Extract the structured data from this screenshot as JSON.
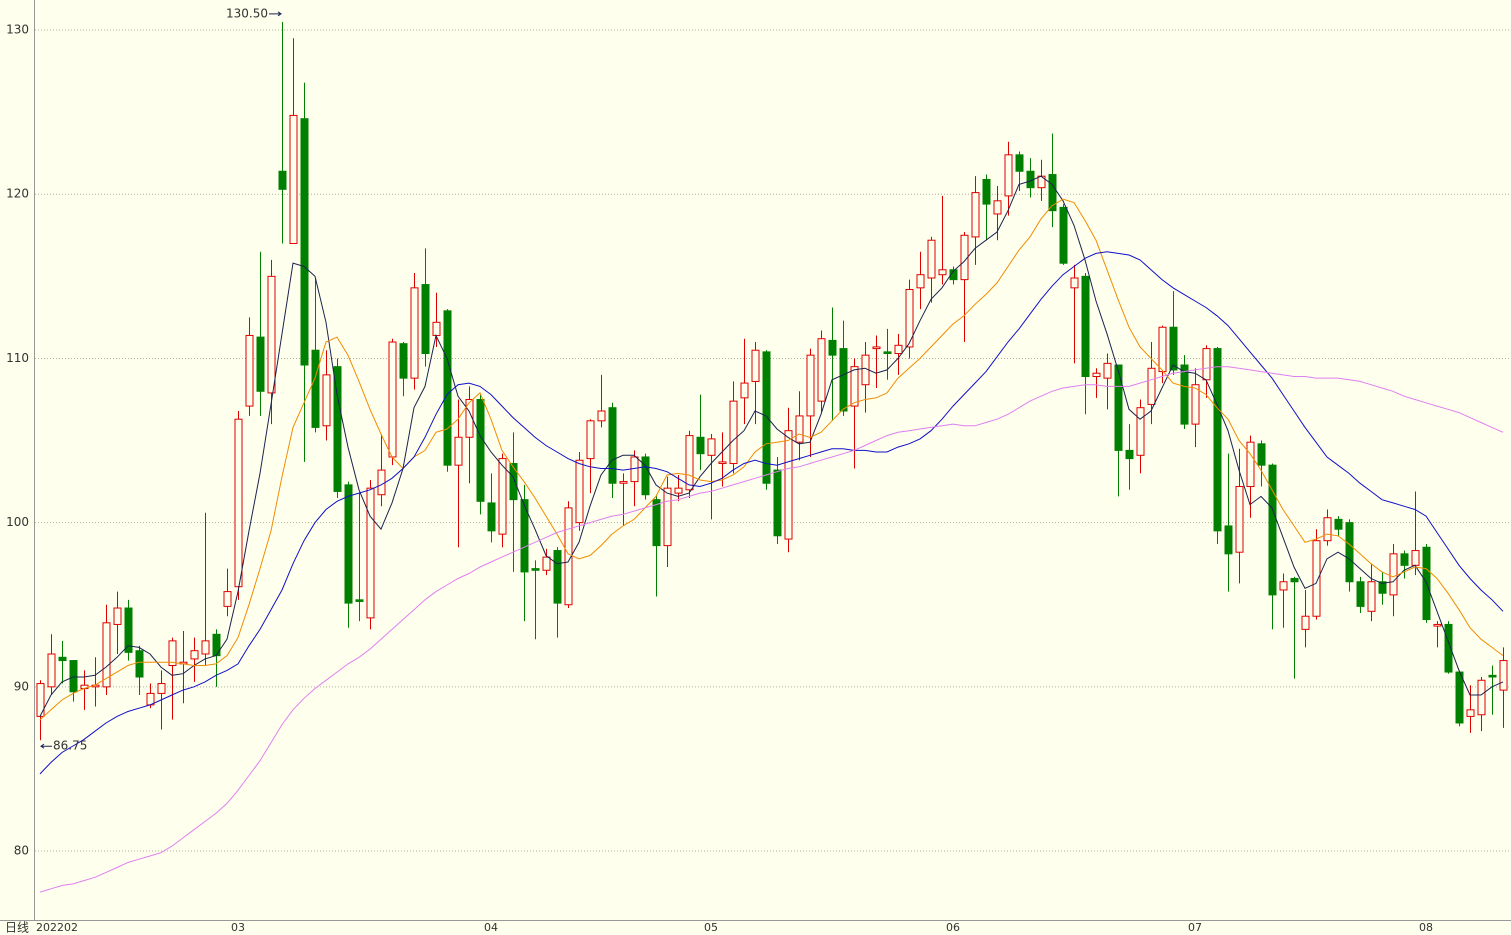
{
  "chart_data": {
    "type": "candlestick",
    "period_label": "日线",
    "max_label": {
      "value": 130.5,
      "label": "130.50"
    },
    "min_label": {
      "value": 86.75,
      "label": "86.75"
    },
    "up_color": "#e00000",
    "down_color": "#008000",
    "ylim": [
      75.8,
      131.83
    ],
    "yticks": [
      80,
      90,
      100,
      110,
      120,
      130
    ],
    "grid": true,
    "categories": [
      "202202",
      null,
      null,
      null,
      null,
      null,
      null,
      null,
      null,
      null,
      null,
      null,
      null,
      null,
      null,
      null,
      null,
      null,
      "03",
      null,
      null,
      null,
      null,
      null,
      null,
      null,
      null,
      null,
      null,
      null,
      null,
      null,
      null,
      null,
      null,
      null,
      null,
      null,
      null,
      null,
      null,
      "04",
      null,
      null,
      null,
      null,
      null,
      null,
      null,
      null,
      null,
      null,
      null,
      null,
      null,
      null,
      null,
      null,
      null,
      null,
      null,
      "05",
      null,
      null,
      null,
      null,
      null,
      null,
      null,
      null,
      null,
      null,
      null,
      null,
      null,
      null,
      null,
      null,
      null,
      null,
      null,
      null,
      null,
      "06",
      null,
      null,
      null,
      null,
      null,
      null,
      null,
      null,
      null,
      null,
      null,
      null,
      null,
      null,
      null,
      null,
      null,
      null,
      null,
      null,
      null,
      "07",
      null,
      null,
      null,
      null,
      null,
      null,
      null,
      null,
      null,
      null,
      null,
      null,
      null,
      null,
      null,
      null,
      null,
      null,
      null,
      null,
      "08",
      null,
      null,
      null,
      null,
      null,
      null,
      null
    ],
    "open": [
      88.2,
      90.0,
      91.8,
      91.6,
      89.9,
      90.0,
      90.0,
      93.8,
      94.8,
      92.2,
      88.9,
      89.6,
      91.3,
      91.4,
      91.7,
      92.0,
      93.2,
      94.9,
      96.1,
      107.1,
      111.3,
      107.9,
      121.4,
      117.0,
      124.6,
      110.5,
      105.9,
      109.5,
      102.3,
      95.3,
      94.2,
      101.7,
      104.0,
      110.9,
      108.8,
      114.5,
      111.4,
      112.9,
      103.5,
      105.2,
      107.5,
      101.2,
      99.3,
      103.6,
      101.4,
      97.2,
      97.1,
      98.3,
      95.0,
      100.0,
      103.9,
      106.2,
      107.0,
      102.4,
      102.5,
      104.0,
      101.4,
      98.6,
      101.8,
      102.0,
      105.2,
      104.1,
      103.6,
      103.6,
      107.6,
      108.6,
      110.4,
      103.2,
      99.0,
      104.9,
      106.5,
      107.4,
      111.1,
      110.6,
      107.1,
      108.4,
      110.6,
      110.4,
      110.3,
      110.7,
      114.3,
      114.9,
      115.1,
      115.4,
      114.8,
      117.4,
      120.9,
      118.8,
      119.9,
      122.4,
      121.4,
      120.4,
      121.2,
      119.2,
      114.3,
      115.0,
      108.9,
      108.8,
      109.6,
      104.4,
      104.1,
      107.2,
      109.2,
      111.9,
      109.6,
      106.0,
      108.7,
      110.6,
      99.8,
      98.2,
      102.2,
      104.8,
      103.5,
      95.9,
      96.6,
      93.5,
      94.3,
      98.9,
      100.2,
      100.0,
      96.4,
      94.6,
      96.4,
      95.6,
      98.1,
      97.4,
      98.5,
      93.7,
      93.8,
      90.9,
      88.2,
      88.3,
      90.7,
      89.8
    ],
    "high": [
      90.4,
      93.2,
      92.8,
      91.6,
      91.0,
      91.8,
      95.0,
      95.8,
      95.3,
      92.5,
      90.2,
      91.0,
      93.0,
      93.4,
      93.0,
      100.6,
      93.5,
      97.2,
      106.8,
      112.5,
      116.5,
      116.0,
      130.5,
      129.5,
      126.8,
      114.9,
      110.5,
      110.0,
      102.5,
      101.8,
      102.6,
      105.4,
      111.2,
      111.0,
      115.2,
      116.7,
      114.0,
      113.0,
      107.5,
      108.3,
      107.8,
      103.0,
      104.2,
      105.5,
      102.3,
      97.7,
      98.4,
      98.5,
      101.3,
      104.3,
      106.3,
      109.0,
      107.3,
      103.0,
      104.4,
      104.2,
      101.7,
      102.8,
      102.9,
      105.6,
      107.8,
      105.4,
      105.5,
      108.6,
      111.2,
      111.0,
      110.5,
      104.0,
      107.0,
      108.0,
      110.6,
      111.7,
      113.1,
      112.3,
      110.0,
      111.0,
      111.4,
      111.8,
      111.5,
      114.8,
      116.5,
      117.4,
      119.9,
      115.6,
      117.7,
      121.1,
      121.2,
      120.5,
      123.2,
      122.6,
      122.2,
      122.1,
      123.7,
      119.4,
      115.7,
      115.2,
      109.4,
      110.3,
      109.6,
      106.0,
      107.5,
      111.0,
      112.0,
      114.1,
      110.2,
      109.4,
      110.8,
      110.7,
      104.2,
      104.5,
      105.3,
      105.0,
      103.6,
      96.9,
      96.7,
      95.9,
      99.6,
      100.8,
      100.4,
      100.2,
      96.7,
      97.5,
      97.0,
      98.7,
      98.3,
      101.9,
      98.7,
      94.0,
      94.0,
      91.0,
      90.1,
      90.6,
      91.3,
      92.4
    ],
    "low": [
      86.75,
      89.5,
      90.2,
      89.1,
      88.6,
      88.8,
      89.5,
      92.0,
      91.6,
      89.5,
      88.7,
      87.4,
      88.0,
      89.0,
      90.3,
      91.3,
      90.0,
      94.3,
      95.3,
      106.5,
      106.5,
      106.0,
      117.0,
      117.0,
      103.7,
      105.5,
      105.0,
      101.5,
      93.6,
      94.0,
      93.5,
      101.0,
      103.5,
      107.7,
      108.1,
      109.5,
      110.7,
      103.1,
      98.5,
      102.4,
      100.5,
      98.8,
      98.5,
      97.0,
      94.0,
      92.9,
      96.8,
      93.0,
      94.8,
      99.5,
      101.8,
      105.8,
      101.5,
      99.8,
      101.0,
      101.4,
      95.5,
      97.3,
      101.3,
      101.5,
      103.2,
      100.2,
      102.2,
      103.0,
      106.0,
      106.0,
      102.0,
      98.7,
      98.2,
      103.8,
      104.0,
      106.7,
      106.2,
      106.5,
      103.3,
      106.7,
      108.2,
      108.7,
      109.0,
      110.0,
      113.0,
      113.4,
      114.5,
      114.5,
      111.0,
      115.7,
      117.2,
      117.2,
      118.7,
      120.2,
      119.8,
      119.6,
      118.0,
      115.7,
      109.7,
      106.6,
      107.6,
      106.9,
      101.6,
      102.0,
      103.0,
      106.0,
      108.5,
      109.0,
      105.7,
      104.6,
      107.6,
      98.7,
      95.8,
      96.3,
      100.3,
      102.2,
      93.5,
      93.6,
      90.5,
      92.4,
      94.1,
      98.6,
      99.2,
      95.8,
      94.5,
      94.0,
      95.0,
      94.3,
      96.6,
      96.8,
      93.9,
      92.4,
      90.8,
      87.6,
      87.2,
      87.3,
      88.3,
      87.5
    ],
    "close": [
      90.2,
      92.0,
      91.6,
      89.7,
      90.1,
      90.1,
      93.9,
      94.8,
      92.1,
      90.6,
      89.6,
      90.2,
      92.8,
      91.5,
      92.2,
      92.8,
      91.9,
      95.8,
      106.3,
      111.4,
      108.0,
      115.0,
      120.3,
      124.8,
      109.6,
      105.8,
      109.0,
      101.9,
      95.1,
      95.2,
      102.1,
      103.2,
      111.0,
      108.8,
      114.3,
      110.3,
      112.2,
      103.5,
      105.2,
      107.5,
      101.3,
      99.5,
      103.9,
      101.4,
      97.0,
      97.1,
      97.9,
      95.1,
      100.9,
      103.8,
      106.2,
      106.8,
      102.4,
      102.5,
      104.0,
      101.7,
      98.6,
      102.1,
      102.1,
      105.3,
      104.2,
      105.1,
      103.7,
      107.4,
      108.5,
      110.5,
      102.4,
      99.2,
      105.6,
      106.5,
      110.2,
      111.2,
      110.2,
      106.8,
      109.5,
      110.2,
      110.7,
      110.3,
      110.8,
      114.2,
      115.1,
      117.2,
      115.4,
      114.8,
      117.5,
      120.1,
      119.4,
      119.6,
      122.4,
      121.4,
      120.4,
      121.1,
      119.0,
      115.8,
      114.9,
      108.9,
      109.1,
      109.7,
      104.4,
      103.9,
      107.0,
      109.4,
      111.9,
      109.3,
      106.0,
      108.4,
      110.6,
      99.5,
      98.1,
      102.2,
      104.9,
      103.5,
      95.6,
      96.4,
      96.4,
      94.3,
      98.9,
      100.3,
      99.6,
      96.4,
      94.9,
      96.4,
      95.7,
      98.1,
      97.4,
      98.3,
      94.1,
      93.8,
      90.9,
      87.8,
      88.6,
      90.4,
      90.6,
      91.6
    ],
    "lines": [
      {
        "color": "#1a2350",
        "values": [
          88.2,
          89.5,
          90.3,
          90.6,
          90.6,
          90.7,
          91.2,
          91.8,
          92.5,
          92.4,
          92.0,
          91.2,
          90.7,
          90.8,
          91.3,
          91.7,
          91.9,
          92.9,
          95.8,
          99.5,
          103.0,
          107.2,
          111.5,
          115.8,
          115.6,
          115.0,
          112.2,
          107.8,
          104.6,
          102.0,
          100.4,
          99.6,
          101.2,
          103.3,
          107.0,
          108.3,
          111.4,
          110.0,
          107.7,
          106.8,
          105.3,
          104.3,
          103.5,
          102.8,
          101.1,
          99.6,
          98.0,
          97.5,
          97.6,
          98.8,
          101.0,
          102.9,
          103.8,
          104.1,
          104.1,
          103.5,
          102.3,
          101.8,
          101.6,
          101.8,
          102.8,
          103.6,
          104.3,
          105.0,
          105.6,
          106.8,
          106.5,
          105.7,
          105.2,
          104.8,
          104.9,
          106.6,
          108.7,
          109.0,
          109.3,
          109.4,
          109.1,
          109.3,
          110.0,
          110.9,
          112.3,
          113.6,
          114.3,
          115.3,
          115.9,
          116.7,
          117.2,
          117.7,
          119.0,
          120.6,
          120.8,
          121.1,
          120.6,
          119.6,
          118.1,
          116.0,
          113.5,
          111.5,
          109.3,
          106.9,
          106.3,
          106.8,
          108.2,
          109.6,
          109.2,
          109.1,
          108.7,
          107.2,
          105.6,
          103.2,
          101.1,
          101.6,
          100.9,
          99.1,
          97.3,
          96.0,
          96.3,
          97.8,
          98.2,
          97.8,
          97.2,
          96.6,
          96.3,
          96.4,
          97.1,
          97.4,
          96.4,
          94.6,
          92.8,
          91.0,
          89.5,
          89.5,
          90.0,
          90.3
        ]
      },
      {
        "color": "#f08c00",
        "values": [
          88.0,
          88.6,
          89.2,
          89.6,
          89.9,
          90.1,
          90.5,
          90.9,
          91.3,
          91.5,
          91.5,
          91.5,
          91.5,
          91.4,
          91.3,
          91.3,
          91.4,
          91.9,
          93.0,
          95.0,
          97.2,
          99.5,
          102.8,
          105.8,
          107.3,
          108.8,
          111.0,
          111.3,
          110.2,
          108.6,
          106.9,
          105.4,
          104.0,
          103.3,
          104.0,
          104.4,
          105.5,
          105.7,
          106.3,
          107.3,
          107.9,
          106.3,
          104.4,
          103.4,
          102.5,
          101.5,
          100.4,
          99.3,
          98.1,
          97.8,
          98.0,
          98.6,
          99.3,
          99.8,
          100.2,
          100.9,
          101.6,
          102.9,
          103.0,
          102.9,
          102.6,
          102.5,
          102.6,
          102.9,
          103.4,
          104.3,
          104.8,
          104.9,
          105.0,
          105.4,
          105.2,
          105.5,
          106.2,
          106.9,
          107.3,
          107.5,
          107.6,
          107.9,
          108.8,
          109.4,
          110.0,
          110.7,
          111.4,
          112.1,
          112.6,
          113.3,
          113.9,
          114.6,
          115.6,
          116.6,
          117.4,
          118.5,
          119.3,
          119.7,
          119.5,
          118.4,
          117.2,
          115.4,
          113.6,
          111.9,
          110.7,
          110.0,
          109.3,
          108.5,
          108.3,
          108.2,
          107.8,
          107.0,
          106.3,
          105.0,
          104.2,
          103.2,
          102.0,
          100.8,
          99.8,
          98.8,
          99.0,
          99.3,
          99.2,
          98.7,
          98.1,
          97.5,
          97.0,
          96.7,
          97.0,
          97.3,
          97.2,
          96.6,
          95.7,
          94.7,
          93.6,
          92.9,
          92.4,
          91.9
        ]
      },
      {
        "color": "#1010c8",
        "values": [
          84.7,
          85.4,
          86.0,
          86.4,
          86.8,
          87.3,
          87.8,
          88.2,
          88.5,
          88.7,
          88.9,
          89.2,
          89.5,
          89.8,
          90.0,
          90.3,
          90.7,
          91.0,
          91.4,
          92.5,
          93.5,
          94.7,
          95.9,
          97.5,
          98.9,
          100.0,
          100.8,
          101.3,
          101.6,
          101.8,
          102.0,
          102.3,
          102.7,
          103.3,
          104.0,
          105.2,
          106.6,
          107.8,
          108.4,
          108.5,
          108.3,
          107.8,
          107.1,
          106.4,
          105.8,
          105.2,
          104.7,
          104.3,
          103.9,
          103.6,
          103.4,
          103.3,
          103.3,
          103.2,
          103.3,
          103.4,
          103.3,
          103.1,
          102.7,
          102.3,
          102.2,
          102.4,
          102.7,
          103.2,
          103.6,
          103.8,
          103.6,
          103.5,
          103.7,
          103.9,
          104.1,
          104.3,
          104.5,
          104.5,
          104.4,
          104.4,
          104.3,
          104.3,
          104.6,
          104.8,
          105.1,
          105.6,
          106.3,
          107.1,
          107.8,
          108.5,
          109.2,
          110.1,
          111.0,
          111.8,
          112.7,
          113.6,
          114.4,
          115.1,
          115.6,
          116.1,
          116.4,
          116.5,
          116.4,
          116.3,
          116.0,
          115.4,
          114.8,
          114.3,
          113.9,
          113.5,
          113.1,
          112.6,
          112.0,
          111.2,
          110.4,
          109.6,
          108.8,
          107.8,
          106.8,
          105.8,
          104.9,
          104.0,
          103.5,
          103.0,
          102.4,
          101.9,
          101.4,
          101.2,
          101.0,
          100.8,
          100.4,
          99.4,
          98.4,
          97.4,
          96.6,
          95.9,
          95.3,
          94.6
        ]
      },
      {
        "color": "#e07ff0",
        "values": [
          77.5,
          77.7,
          77.9,
          78.0,
          78.2,
          78.4,
          78.7,
          79.0,
          79.3,
          79.5,
          79.7,
          79.9,
          80.3,
          80.8,
          81.3,
          81.8,
          82.3,
          82.9,
          83.7,
          84.6,
          85.5,
          86.6,
          87.7,
          88.6,
          89.3,
          89.9,
          90.4,
          90.9,
          91.4,
          91.8,
          92.3,
          92.9,
          93.5,
          94.1,
          94.7,
          95.3,
          95.8,
          96.2,
          96.6,
          96.9,
          97.3,
          97.6,
          97.9,
          98.2,
          98.5,
          98.8,
          99.1,
          99.4,
          99.6,
          99.8,
          100.0,
          100.2,
          100.4,
          100.5,
          100.7,
          100.9,
          101.1,
          101.3,
          101.4,
          101.6,
          101.8,
          101.9,
          102.1,
          102.3,
          102.5,
          102.7,
          102.9,
          103.1,
          103.3,
          103.4,
          103.6,
          103.8,
          104.0,
          104.2,
          104.4,
          104.7,
          105.0,
          105.3,
          105.5,
          105.6,
          105.7,
          105.8,
          105.9,
          106.0,
          105.9,
          105.9,
          106.1,
          106.3,
          106.6,
          107.0,
          107.4,
          107.7,
          108.0,
          108.2,
          108.3,
          108.4,
          108.4,
          108.3,
          108.3,
          108.3,
          108.5,
          108.7,
          108.9,
          109.1,
          109.2,
          109.3,
          109.4,
          109.5,
          109.5,
          109.4,
          109.3,
          109.2,
          109.1,
          109.0,
          108.9,
          108.9,
          108.8,
          108.8,
          108.8,
          108.7,
          108.6,
          108.4,
          108.2,
          108.0,
          107.7,
          107.5,
          107.3,
          107.1,
          106.9,
          106.7,
          106.4,
          106.1,
          105.8,
          105.5
        ]
      }
    ]
  }
}
